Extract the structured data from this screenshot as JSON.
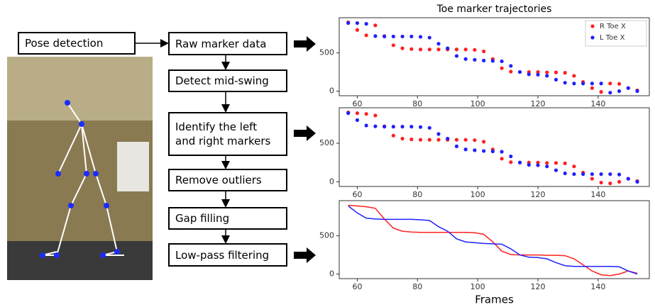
{
  "nodes": [
    {
      "label": "Pose detection"
    },
    {
      "label": "Raw marker data"
    },
    {
      "label": "Detect mid-swing"
    },
    {
      "label": "Identify the left and right markers"
    },
    {
      "label": "Remove outliers"
    },
    {
      "label": "Gap filling"
    },
    {
      "label": "Low-pass filtering"
    }
  ],
  "chart_data": [
    {
      "type": "scatter",
      "title": "Toe marker trajectories",
      "x": [
        57,
        60,
        63,
        66,
        69,
        72,
        75,
        78,
        81,
        84,
        87,
        90,
        93,
        96,
        99,
        102,
        105,
        108,
        111,
        114,
        117,
        120,
        123,
        126,
        129,
        132,
        135,
        138,
        141,
        144,
        147,
        150,
        153
      ],
      "series": [
        {
          "name": "R Toe X",
          "color": "#ff2020",
          "values": [
            900,
            800,
            730,
            860,
            720,
            600,
            560,
            550,
            545,
            545,
            545,
            545,
            545,
            545,
            540,
            520,
            420,
            300,
            255,
            250,
            250,
            250,
            245,
            245,
            240,
            200,
            120,
            40,
            -10,
            100,
            95,
            40,
            10
          ]
        },
        {
          "name": "L Toe X",
          "color": "#2020ff",
          "values": [
            890,
            890,
            880,
            720,
            715,
            715,
            715,
            715,
            710,
            700,
            620,
            560,
            460,
            420,
            410,
            400,
            395,
            390,
            330,
            250,
            220,
            215,
            200,
            150,
            110,
            100,
            100,
            100,
            100,
            -20,
            0,
            40,
            0
          ]
        }
      ],
      "xlim": [
        54,
        157
      ],
      "ylim": [
        -60,
        960
      ],
      "xticks": [
        60,
        80,
        100,
        120,
        140
      ],
      "yticks": [
        0,
        500
      ],
      "legend": "upper right"
    },
    {
      "type": "scatter",
      "x": [
        57,
        60,
        63,
        66,
        69,
        72,
        75,
        78,
        81,
        84,
        87,
        90,
        93,
        96,
        99,
        102,
        105,
        108,
        111,
        114,
        117,
        120,
        123,
        126,
        129,
        132,
        135,
        138,
        141,
        144,
        147,
        150,
        153
      ],
      "series": [
        {
          "name": null,
          "color": "#ff2020",
          "values": [
            900,
            890,
            880,
            860,
            720,
            600,
            560,
            550,
            545,
            545,
            545,
            545,
            545,
            545,
            540,
            520,
            420,
            300,
            255,
            250,
            250,
            250,
            245,
            245,
            240,
            200,
            120,
            40,
            -10,
            -20,
            0,
            40,
            10
          ]
        },
        {
          "name": null,
          "color": "#2020ff",
          "values": [
            890,
            800,
            730,
            720,
            715,
            715,
            715,
            715,
            710,
            700,
            620,
            560,
            460,
            420,
            410,
            400,
            395,
            390,
            330,
            250,
            220,
            215,
            200,
            150,
            110,
            100,
            100,
            100,
            100,
            100,
            95,
            40,
            0
          ]
        }
      ],
      "xlim": [
        54,
        157
      ],
      "ylim": [
        -60,
        960
      ],
      "xticks": [
        60,
        80,
        100,
        120,
        140
      ],
      "yticks": [
        0,
        500
      ]
    },
    {
      "type": "line",
      "xlabel": "Frames",
      "x": [
        57,
        60,
        63,
        66,
        69,
        72,
        75,
        78,
        81,
        84,
        87,
        90,
        93,
        96,
        99,
        102,
        105,
        108,
        111,
        114,
        117,
        120,
        123,
        126,
        129,
        132,
        135,
        138,
        141,
        144,
        147,
        150,
        153
      ],
      "series": [
        {
          "name": null,
          "color": "#ff2020",
          "values": [
            900,
            890,
            880,
            860,
            720,
            600,
            560,
            550,
            545,
            545,
            545,
            545,
            545,
            545,
            540,
            520,
            420,
            300,
            255,
            250,
            250,
            250,
            245,
            245,
            240,
            200,
            120,
            40,
            -10,
            -20,
            0,
            40,
            10
          ]
        },
        {
          "name": null,
          "color": "#2020ff",
          "values": [
            890,
            800,
            730,
            720,
            715,
            715,
            715,
            715,
            710,
            700,
            620,
            560,
            460,
            420,
            410,
            400,
            395,
            390,
            330,
            250,
            220,
            215,
            200,
            150,
            110,
            100,
            100,
            100,
            100,
            100,
            95,
            40,
            0
          ]
        }
      ],
      "xlim": [
        54,
        157
      ],
      "ylim": [
        -60,
        960
      ],
      "xticks": [
        60,
        80,
        100,
        120,
        140
      ],
      "yticks": [
        0,
        500
      ]
    }
  ]
}
